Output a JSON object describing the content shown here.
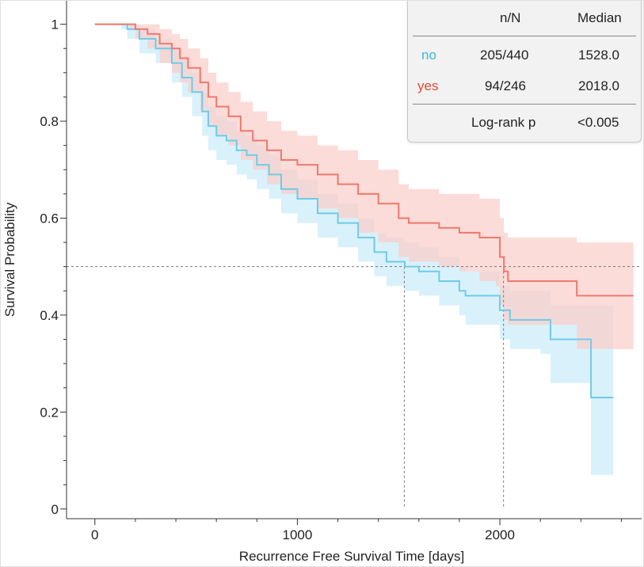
{
  "chart_data": {
    "type": "line",
    "subtype": "kaplan-meier",
    "xlabel": "Recurrence Free Survival Time [days]",
    "ylabel": "Survival Probability",
    "xlim": [
      -140,
      2700
    ],
    "ylim": [
      -0.02,
      1.05
    ],
    "x_ticks": [
      0,
      1000,
      2000
    ],
    "x_tick_labels": [
      "0",
      "1000",
      "2000"
    ],
    "y_ticks": [
      0,
      0.2,
      0.4,
      0.6,
      0.8,
      1
    ],
    "y_tick_labels": [
      "0",
      "0.2",
      "0.4",
      "0.6",
      "0.8",
      "1"
    ],
    "median_line": 0.5,
    "series": [
      {
        "name": "no",
        "color": "#6fcbe8",
        "band_color": "#c9ebf9",
        "median": 1528.0,
        "steps": [
          [
            0,
            1.0
          ],
          [
            130,
            1.0
          ],
          [
            160,
            0.99
          ],
          [
            220,
            0.97
          ],
          [
            300,
            0.95
          ],
          [
            380,
            0.92
          ],
          [
            430,
            0.89
          ],
          [
            480,
            0.86
          ],
          [
            530,
            0.82
          ],
          [
            560,
            0.79
          ],
          [
            600,
            0.77
          ],
          [
            650,
            0.76
          ],
          [
            700,
            0.74
          ],
          [
            750,
            0.73
          ],
          [
            800,
            0.71
          ],
          [
            860,
            0.69
          ],
          [
            920,
            0.66
          ],
          [
            1000,
            0.64
          ],
          [
            1100,
            0.61
          ],
          [
            1200,
            0.59
          ],
          [
            1300,
            0.56
          ],
          [
            1380,
            0.53
          ],
          [
            1440,
            0.51
          ],
          [
            1530,
            0.5
          ],
          [
            1600,
            0.49
          ],
          [
            1700,
            0.47
          ],
          [
            1800,
            0.45
          ],
          [
            1830,
            0.44
          ],
          [
            1950,
            0.44
          ],
          [
            2000,
            0.41
          ],
          [
            2050,
            0.39
          ],
          [
            2200,
            0.39
          ],
          [
            2250,
            0.35
          ],
          [
            2400,
            0.35
          ],
          [
            2450,
            0.23
          ],
          [
            2560,
            0.23
          ]
        ],
        "ci_upper": [
          [
            0,
            1.0
          ],
          [
            130,
            1.0
          ],
          [
            160,
            1.0
          ],
          [
            220,
            0.99
          ],
          [
            300,
            0.97
          ],
          [
            380,
            0.95
          ],
          [
            430,
            0.93
          ],
          [
            480,
            0.9
          ],
          [
            530,
            0.86
          ],
          [
            560,
            0.83
          ],
          [
            600,
            0.81
          ],
          [
            650,
            0.8
          ],
          [
            700,
            0.78
          ],
          [
            750,
            0.77
          ],
          [
            800,
            0.75
          ],
          [
            860,
            0.73
          ],
          [
            920,
            0.7
          ],
          [
            1000,
            0.68
          ],
          [
            1100,
            0.65
          ],
          [
            1200,
            0.63
          ],
          [
            1300,
            0.6
          ],
          [
            1380,
            0.57
          ],
          [
            1440,
            0.56
          ],
          [
            1530,
            0.55
          ],
          [
            1600,
            0.54
          ],
          [
            1700,
            0.52
          ],
          [
            1800,
            0.5
          ],
          [
            1830,
            0.49
          ],
          [
            1950,
            0.49
          ],
          [
            2000,
            0.46
          ],
          [
            2050,
            0.45
          ],
          [
            2200,
            0.45
          ],
          [
            2250,
            0.42
          ],
          [
            2400,
            0.42
          ],
          [
            2450,
            0.42
          ],
          [
            2560,
            0.42
          ]
        ],
        "ci_lower": [
          [
            0,
            1.0
          ],
          [
            130,
            0.99
          ],
          [
            160,
            0.97
          ],
          [
            220,
            0.94
          ],
          [
            300,
            0.92
          ],
          [
            380,
            0.88
          ],
          [
            430,
            0.85
          ],
          [
            480,
            0.81
          ],
          [
            530,
            0.77
          ],
          [
            560,
            0.74
          ],
          [
            600,
            0.72
          ],
          [
            650,
            0.71
          ],
          [
            700,
            0.69
          ],
          [
            750,
            0.68
          ],
          [
            800,
            0.66
          ],
          [
            860,
            0.64
          ],
          [
            920,
            0.61
          ],
          [
            1000,
            0.59
          ],
          [
            1100,
            0.56
          ],
          [
            1200,
            0.54
          ],
          [
            1300,
            0.51
          ],
          [
            1380,
            0.48
          ],
          [
            1440,
            0.46
          ],
          [
            1530,
            0.45
          ],
          [
            1600,
            0.44
          ],
          [
            1700,
            0.42
          ],
          [
            1800,
            0.4
          ],
          [
            1830,
            0.38
          ],
          [
            1950,
            0.38
          ],
          [
            2000,
            0.35
          ],
          [
            2050,
            0.33
          ],
          [
            2200,
            0.32
          ],
          [
            2250,
            0.26
          ],
          [
            2400,
            0.26
          ],
          [
            2450,
            0.07
          ],
          [
            2560,
            0.07
          ]
        ]
      },
      {
        "name": "yes",
        "color": "#f0786e",
        "band_color": "#fbcdc8",
        "median": 2018.0,
        "steps": [
          [
            0,
            1.0
          ],
          [
            170,
            1.0
          ],
          [
            200,
            0.99
          ],
          [
            260,
            0.98
          ],
          [
            320,
            0.96
          ],
          [
            380,
            0.95
          ],
          [
            420,
            0.93
          ],
          [
            460,
            0.91
          ],
          [
            520,
            0.88
          ],
          [
            560,
            0.85
          ],
          [
            600,
            0.83
          ],
          [
            660,
            0.81
          ],
          [
            720,
            0.78
          ],
          [
            780,
            0.76
          ],
          [
            850,
            0.74
          ],
          [
            920,
            0.72
          ],
          [
            1000,
            0.71
          ],
          [
            1100,
            0.69
          ],
          [
            1200,
            0.67
          ],
          [
            1300,
            0.65
          ],
          [
            1400,
            0.63
          ],
          [
            1500,
            0.6
          ],
          [
            1550,
            0.59
          ],
          [
            1650,
            0.59
          ],
          [
            1700,
            0.58
          ],
          [
            1800,
            0.57
          ],
          [
            1900,
            0.56
          ],
          [
            1980,
            0.56
          ],
          [
            2000,
            0.52
          ],
          [
            2020,
            0.49
          ],
          [
            2040,
            0.47
          ],
          [
            2350,
            0.47
          ],
          [
            2380,
            0.44
          ],
          [
            2660,
            0.44
          ]
        ],
        "ci_upper": [
          [
            0,
            1.0
          ],
          [
            170,
            1.0
          ],
          [
            200,
            1.0
          ],
          [
            260,
            1.0
          ],
          [
            320,
            0.99
          ],
          [
            380,
            0.98
          ],
          [
            420,
            0.97
          ],
          [
            460,
            0.95
          ],
          [
            520,
            0.93
          ],
          [
            560,
            0.9
          ],
          [
            600,
            0.88
          ],
          [
            660,
            0.86
          ],
          [
            720,
            0.84
          ],
          [
            780,
            0.82
          ],
          [
            850,
            0.8
          ],
          [
            920,
            0.78
          ],
          [
            1000,
            0.77
          ],
          [
            1100,
            0.75
          ],
          [
            1200,
            0.74
          ],
          [
            1300,
            0.72
          ],
          [
            1400,
            0.7
          ],
          [
            1500,
            0.67
          ],
          [
            1550,
            0.66
          ],
          [
            1650,
            0.66
          ],
          [
            1700,
            0.65
          ],
          [
            1800,
            0.65
          ],
          [
            1900,
            0.64
          ],
          [
            1980,
            0.64
          ],
          [
            2000,
            0.6
          ],
          [
            2020,
            0.57
          ],
          [
            2040,
            0.56
          ],
          [
            2350,
            0.56
          ],
          [
            2380,
            0.55
          ],
          [
            2660,
            0.55
          ]
        ],
        "ci_lower": [
          [
            0,
            1.0
          ],
          [
            170,
            0.99
          ],
          [
            200,
            0.97
          ],
          [
            260,
            0.95
          ],
          [
            320,
            0.92
          ],
          [
            380,
            0.9
          ],
          [
            420,
            0.88
          ],
          [
            460,
            0.86
          ],
          [
            520,
            0.82
          ],
          [
            560,
            0.79
          ],
          [
            600,
            0.77
          ],
          [
            660,
            0.75
          ],
          [
            720,
            0.72
          ],
          [
            780,
            0.7
          ],
          [
            850,
            0.67
          ],
          [
            920,
            0.65
          ],
          [
            1000,
            0.64
          ],
          [
            1100,
            0.62
          ],
          [
            1200,
            0.6
          ],
          [
            1300,
            0.57
          ],
          [
            1400,
            0.55
          ],
          [
            1500,
            0.52
          ],
          [
            1550,
            0.51
          ],
          [
            1650,
            0.51
          ],
          [
            1700,
            0.5
          ],
          [
            1800,
            0.49
          ],
          [
            1900,
            0.47
          ],
          [
            1980,
            0.46
          ],
          [
            2000,
            0.42
          ],
          [
            2020,
            0.39
          ],
          [
            2040,
            0.38
          ],
          [
            2350,
            0.38
          ],
          [
            2380,
            0.33
          ],
          [
            2660,
            0.33
          ]
        ]
      }
    ]
  },
  "legend": {
    "headers": {
      "group": "",
      "n_over_n": "n/N",
      "median": "Median"
    },
    "rows": [
      {
        "group": "no",
        "n_over_n": "205/440",
        "median": "1528.0",
        "color": "#3cb8e3"
      },
      {
        "group": "yes",
        "n_over_n": "94/246",
        "median": "2018.0",
        "color": "#e8463a"
      }
    ],
    "footer": {
      "label": "Log-rank p",
      "value": "<0.005"
    }
  }
}
